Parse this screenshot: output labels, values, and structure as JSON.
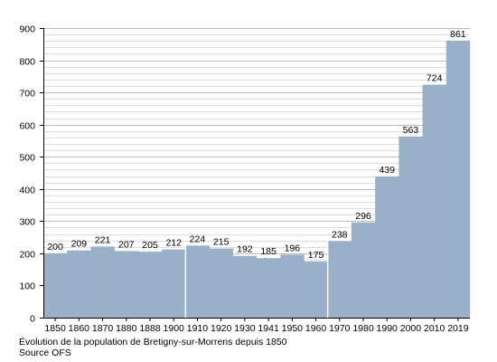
{
  "chart_data": {
    "type": "bar",
    "categories": [
      "1850",
      "1860",
      "1870",
      "1880",
      "1888",
      "1900",
      "1910",
      "1920",
      "1930",
      "1941",
      "1950",
      "1960",
      "1970",
      "1980",
      "1990",
      "2000",
      "2010",
      "2019"
    ],
    "values": [
      200,
      209,
      221,
      207,
      205,
      212,
      224,
      215,
      192,
      185,
      196,
      175,
      238,
      296,
      439,
      563,
      724,
      861
    ],
    "data_labels": [
      "200",
      "209",
      "221",
      "207",
      "205",
      "212",
      "224",
      "215",
      "192",
      "185",
      "196",
      "175",
      "238",
      "296",
      "439",
      "563",
      "724",
      "861"
    ],
    "y_ticks": [
      "0",
      "100",
      "200",
      "300",
      "400",
      "500",
      "600",
      "700",
      "800",
      "900"
    ],
    "ylim": [
      0,
      900
    ],
    "title": "",
    "xlabel": "",
    "ylabel": "",
    "grid": true,
    "bar_color": "#9ab0c8",
    "grid_color": "#bbbbbb",
    "caption": "Évolution de la population de Bretigny-sur-Morrens depuis 1850",
    "source": "Source OFS"
  }
}
